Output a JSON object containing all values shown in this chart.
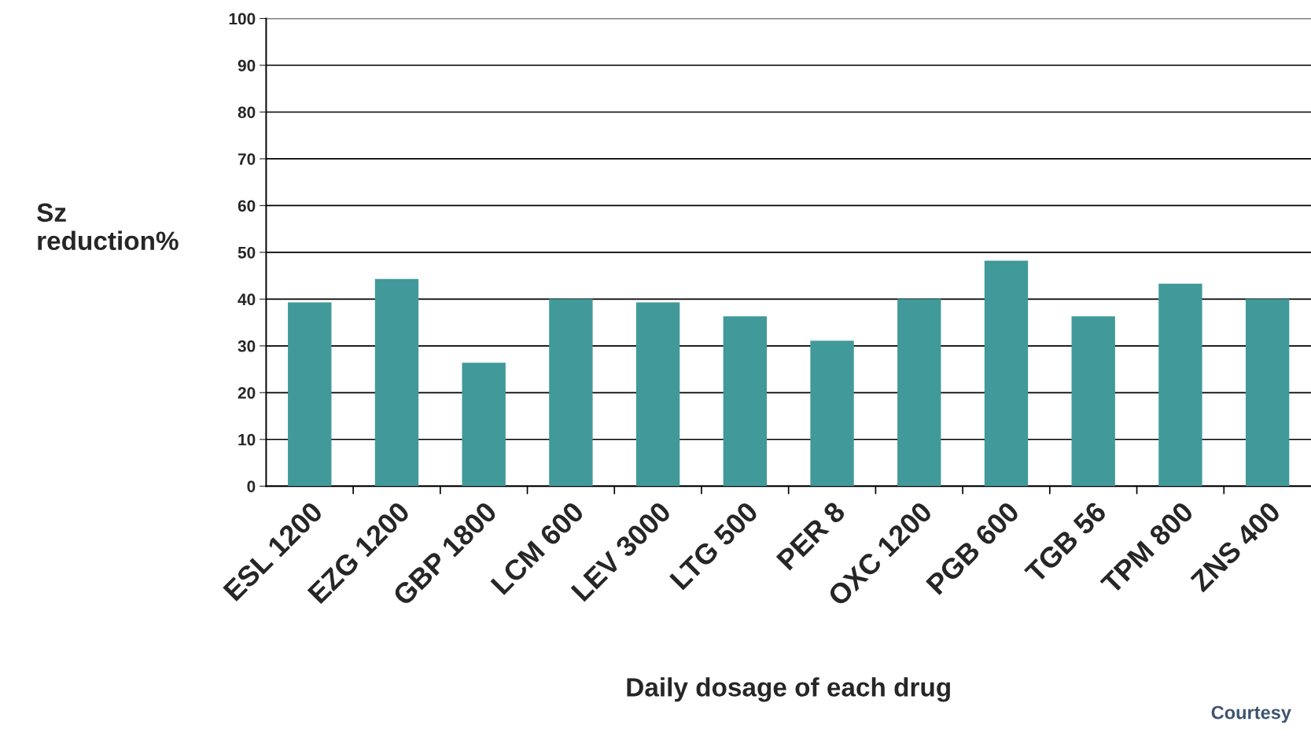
{
  "chart_data": {
    "type": "bar",
    "xlabel": "Daily dosage of each drug",
    "ylabel": "Sz\nreduction%",
    "categories": [
      "ESL 1200",
      "EZG 1200",
      "GBP 1800",
      "LCM 600",
      "LEV 3000",
      "LTG 500",
      "PER 8",
      "OXC 1200",
      "PGB 600",
      "TGB 56",
      "TPM 800",
      "ZNS 400"
    ],
    "values": [
      39.3,
      44.3,
      26.4,
      40,
      39.3,
      36.3,
      31.1,
      40,
      48.2,
      36.3,
      43.3,
      40
    ],
    "color": "#41999a",
    "ylim": [
      0,
      100
    ],
    "yticks": [
      0,
      10,
      20,
      30,
      40,
      50,
      60,
      70,
      80,
      90,
      100
    ],
    "grid": "y",
    "annotations": [
      "Courtesy"
    ]
  }
}
